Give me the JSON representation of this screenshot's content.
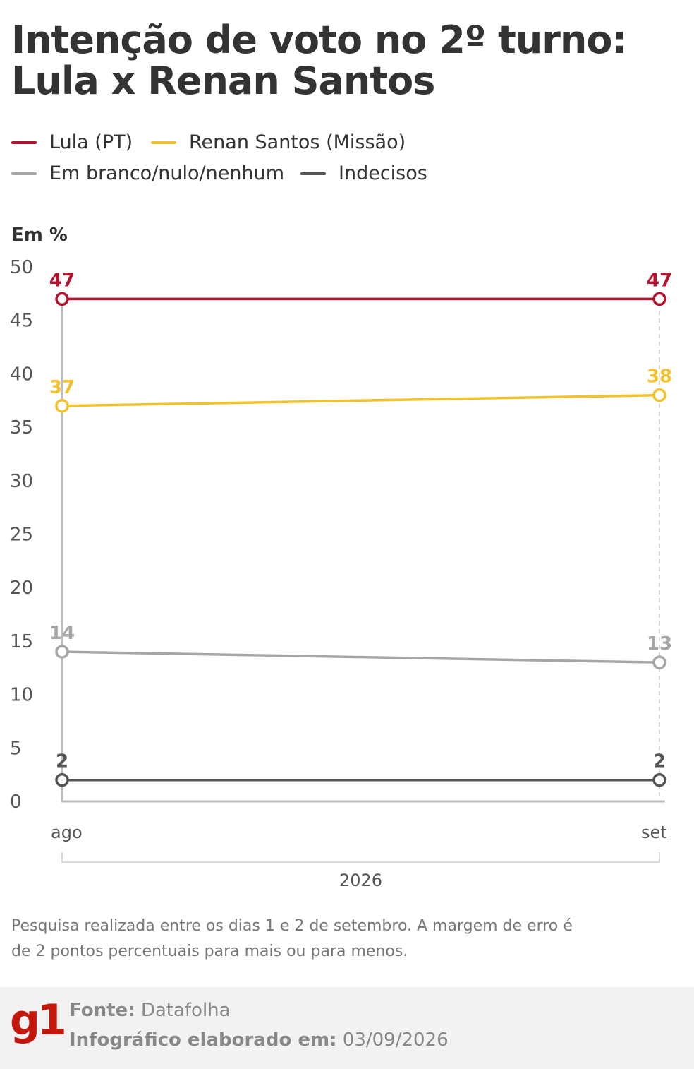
{
  "title": "Intenção de voto no 2º turno: Lula x Renan Santos",
  "unit_label": "Em %",
  "legend": [
    {
      "label": "Lula (PT)",
      "color": "#b5122d"
    },
    {
      "label": "Renan Santos (Missão)",
      "color": "#f2c12e"
    },
    {
      "label": "Em branco/nulo/nenhum",
      "color": "#a6a6a6"
    },
    {
      "label": "Indecisos",
      "color": "#555555"
    }
  ],
  "chart_data": {
    "type": "line",
    "x": [
      "ago",
      "set"
    ],
    "x_group_label": "2026",
    "y_ticks": [
      0,
      5,
      10,
      15,
      20,
      25,
      30,
      35,
      40,
      45,
      50
    ],
    "ylim": [
      0,
      50
    ],
    "series": [
      {
        "name": "Lula (PT)",
        "color": "#b5122d",
        "values": [
          47,
          47
        ]
      },
      {
        "name": "Renan Santos (Missão)",
        "color": "#f2c12e",
        "values": [
          37,
          38
        ]
      },
      {
        "name": "Em branco/nulo/nenhum",
        "color": "#a6a6a6",
        "values": [
          14,
          13
        ]
      },
      {
        "name": "Indecisos",
        "color": "#555555",
        "values": [
          2,
          2
        ]
      }
    ]
  },
  "note": "Pesquisa realizada entre os dias 1 e 2 de setembro. A margem de erro é de 2 pontos percentuais para mais ou para menos.",
  "footer": {
    "logo": "g1",
    "source_label": "Fonte:",
    "source_value": "Datafolha",
    "date_label": "Infográfico elaborado em:",
    "date_value": "03/09/2026"
  }
}
